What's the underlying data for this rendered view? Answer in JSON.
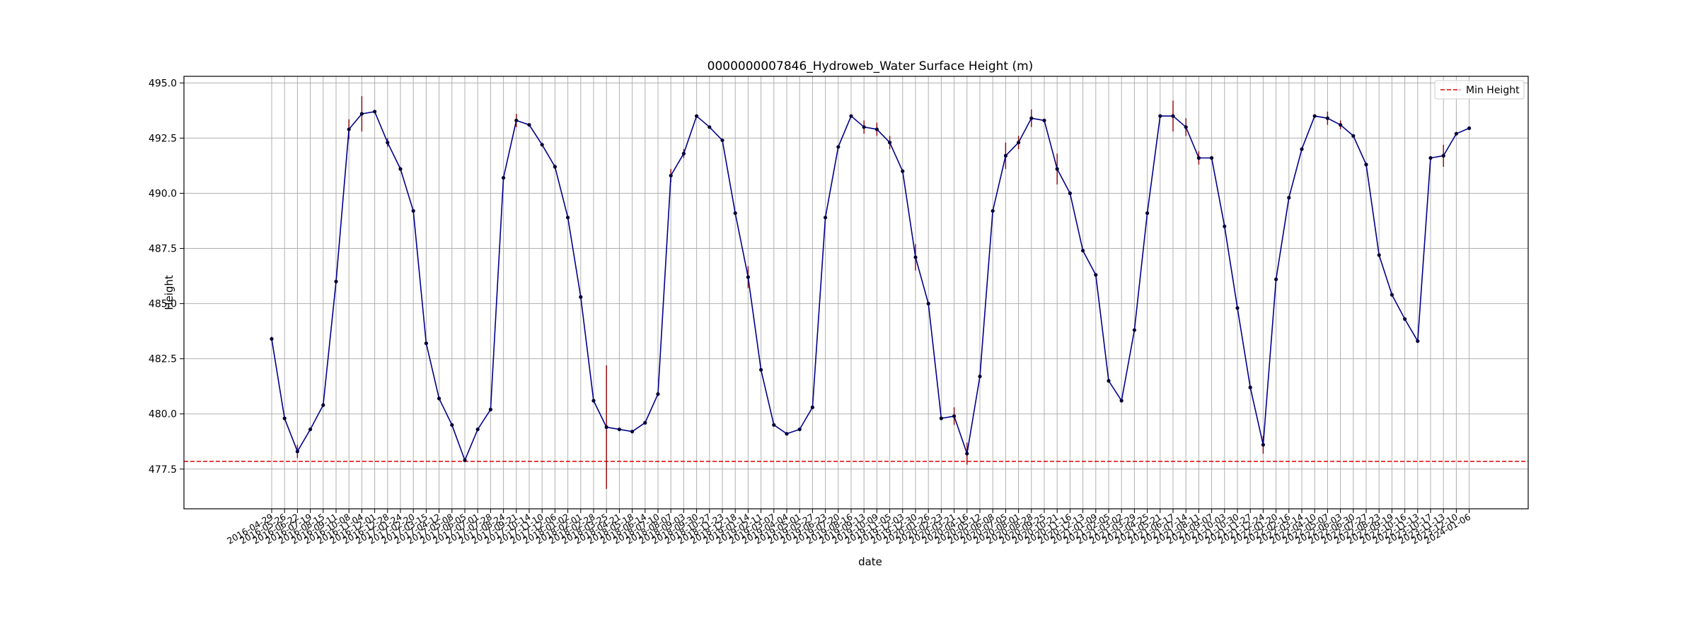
{
  "chart_data": {
    "type": "line",
    "title": "0000000007846_Hydroweb_Water Surface Height (m)",
    "xlabel": "date",
    "ylabel": "Height",
    "ylim": [
      475.7,
      495.3
    ],
    "yticks": [
      "477.5",
      "480.0",
      "482.5",
      "485.0",
      "487.5",
      "490.0",
      "492.5",
      "495.0"
    ],
    "grid": true,
    "legend": {
      "position": "top-right",
      "entries": [
        "Min Height"
      ]
    },
    "colors": {
      "line": "#00008b",
      "point": "#000033",
      "error": "#8b0000",
      "min_line": "#e00000",
      "grid": "#b0b0b0"
    },
    "min_height": 477.85,
    "series": [
      {
        "points": [
          {
            "x": "2016-04-29",
            "y": 483.4,
            "err": 0.1
          },
          {
            "x": "2016-05-26",
            "y": 479.8,
            "err": 0
          },
          {
            "x": "2016-06-22",
            "y": 478.3,
            "err": 0.3
          },
          {
            "x": "2016-07-19",
            "y": 479.3,
            "err": 0
          },
          {
            "x": "2016-08-15",
            "y": 480.4,
            "err": 0
          },
          {
            "x": "2016-09-11",
            "y": 486.0,
            "err": 0
          },
          {
            "x": "2016-10-08",
            "y": 492.9,
            "err": 0.45
          },
          {
            "x": "2016-11-04",
            "y": 493.6,
            "err": 0.8
          },
          {
            "x": "2016-12-01",
            "y": 493.7,
            "err": 0
          },
          {
            "x": "2016-12-28",
            "y": 492.3,
            "err": 0.2
          },
          {
            "x": "2017-01-24",
            "y": 491.1,
            "err": 0
          },
          {
            "x": "2017-02-20",
            "y": 489.2,
            "err": 0
          },
          {
            "x": "2017-03-15",
            "y": 483.2,
            "err": 0
          },
          {
            "x": "2017-04-12",
            "y": 480.7,
            "err": 0
          },
          {
            "x": "2017-05-08",
            "y": 479.5,
            "err": 0
          },
          {
            "x": "2017-06-05",
            "y": 477.9,
            "err": 0
          },
          {
            "x": "2017-07-01",
            "y": 479.3,
            "err": 0
          },
          {
            "x": "2017-07-28",
            "y": 480.2,
            "err": 0
          },
          {
            "x": "2017-08-24",
            "y": 490.7,
            "err": 0
          },
          {
            "x": "2017-09-21",
            "y": 493.3,
            "err": 0.3
          },
          {
            "x": "2017-10-14",
            "y": 493.1,
            "err": 0
          },
          {
            "x": "2017-11-10",
            "y": 492.2,
            "err": 0
          },
          {
            "x": "2017-12-06",
            "y": 491.2,
            "err": 0.1
          },
          {
            "x": "2018-01-02",
            "y": 488.9,
            "err": 0
          },
          {
            "x": "2018-02-01",
            "y": 485.3,
            "err": 0
          },
          {
            "x": "2018-02-28",
            "y": 480.6,
            "err": 0
          },
          {
            "x": "2018-03-25",
            "y": 479.4,
            "err": 2.8
          },
          {
            "x": "2018-04-21",
            "y": 479.3,
            "err": 0
          },
          {
            "x": "2018-05-18",
            "y": 479.2,
            "err": 0
          },
          {
            "x": "2018-06-14",
            "y": 479.6,
            "err": 0
          },
          {
            "x": "2018-07-10",
            "y": 480.9,
            "err": 0
          },
          {
            "x": "2018-08-07",
            "y": 490.8,
            "err": 0.3
          },
          {
            "x": "2018-09-03",
            "y": 491.8,
            "err": 0.2
          },
          {
            "x": "2018-09-30",
            "y": 493.5,
            "err": 0
          },
          {
            "x": "2018-10-27",
            "y": 493.0,
            "err": 0
          },
          {
            "x": "2018-11-23",
            "y": 492.4,
            "err": 0
          },
          {
            "x": "2018-12-18",
            "y": 489.1,
            "err": 0
          },
          {
            "x": "2019-01-14",
            "y": 486.2,
            "err": 0.5
          },
          {
            "x": "2019-02-11",
            "y": 482.0,
            "err": 0
          },
          {
            "x": "2019-03-07",
            "y": 479.5,
            "err": 0
          },
          {
            "x": "2019-04-04",
            "y": 479.1,
            "err": 0
          },
          {
            "x": "2019-05-01",
            "y": 479.3,
            "err": 0
          },
          {
            "x": "2019-05-27",
            "y": 480.3,
            "err": 0
          },
          {
            "x": "2019-06-23",
            "y": 488.9,
            "err": 0
          },
          {
            "x": "2019-07-20",
            "y": 492.1,
            "err": 0
          },
          {
            "x": "2019-08-16",
            "y": 493.5,
            "err": 0
          },
          {
            "x": "2019-09-13",
            "y": 493.0,
            "err": 0.3
          },
          {
            "x": "2019-10-09",
            "y": 492.9,
            "err": 0.3
          },
          {
            "x": "2019-11-05",
            "y": 492.3,
            "err": 0.3
          },
          {
            "x": "2019-12-03",
            "y": 491.0,
            "err": 0
          },
          {
            "x": "2019-12-30",
            "y": 487.1,
            "err": 0.6
          },
          {
            "x": "2020-01-26",
            "y": 485.0,
            "err": 0
          },
          {
            "x": "2020-02-23",
            "y": 479.8,
            "err": 0
          },
          {
            "x": "2020-03-21",
            "y": 479.9,
            "err": 0.4
          },
          {
            "x": "2020-04-16",
            "y": 478.2,
            "err": 0.5
          },
          {
            "x": "2020-05-12",
            "y": 481.7,
            "err": 0
          },
          {
            "x": "2020-06-08",
            "y": 489.2,
            "err": 0
          },
          {
            "x": "2020-07-05",
            "y": 491.7,
            "err": 0.6
          },
          {
            "x": "2020-08-01",
            "y": 492.3,
            "err": 0.3
          },
          {
            "x": "2020-08-28",
            "y": 493.4,
            "err": 0.4
          },
          {
            "x": "2020-09-25",
            "y": 493.3,
            "err": 0
          },
          {
            "x": "2020-10-21",
            "y": 491.1,
            "err": 0.7
          },
          {
            "x": "2020-11-16",
            "y": 490.0,
            "err": 0
          },
          {
            "x": "2020-12-13",
            "y": 487.4,
            "err": 0
          },
          {
            "x": "2021-01-09",
            "y": 486.3,
            "err": 0
          },
          {
            "x": "2021-02-05",
            "y": 481.5,
            "err": 0
          },
          {
            "x": "2021-03-02",
            "y": 480.6,
            "err": 0
          },
          {
            "x": "2021-03-29",
            "y": 483.8,
            "err": 0
          },
          {
            "x": "2021-04-25",
            "y": 489.1,
            "err": 0
          },
          {
            "x": "2021-05-21",
            "y": 493.5,
            "err": 0
          },
          {
            "x": "2021-06-17",
            "y": 493.5,
            "err": 0.7
          },
          {
            "x": "2021-07-14",
            "y": 493.0,
            "err": 0.4
          },
          {
            "x": "2021-08-11",
            "y": 491.6,
            "err": 0.3
          },
          {
            "x": "2021-09-07",
            "y": 491.6,
            "err": 0
          },
          {
            "x": "2021-10-03",
            "y": 488.5,
            "err": 0
          },
          {
            "x": "2021-10-30",
            "y": 484.8,
            "err": 0
          },
          {
            "x": "2021-11-27",
            "y": 481.2,
            "err": 0
          },
          {
            "x": "2021-12-24",
            "y": 478.6,
            "err": 0.4
          },
          {
            "x": "2022-01-20",
            "y": 486.1,
            "err": 0
          },
          {
            "x": "2022-02-16",
            "y": 489.8,
            "err": 0
          },
          {
            "x": "2022-03-14",
            "y": 492.0,
            "err": 0
          },
          {
            "x": "2022-04-10",
            "y": 493.5,
            "err": 0
          },
          {
            "x": "2022-05-07",
            "y": 493.4,
            "err": 0.3
          },
          {
            "x": "2022-06-03",
            "y": 493.1,
            "err": 0.2
          },
          {
            "x": "2022-06-30",
            "y": 492.6,
            "err": 0
          },
          {
            "x": "2022-07-27",
            "y": 491.3,
            "err": 0
          },
          {
            "x": "2022-08-23",
            "y": 487.2,
            "err": 0
          },
          {
            "x": "2022-09-19",
            "y": 485.4,
            "err": 0
          },
          {
            "x": "2022-10-16",
            "y": 484.3,
            "err": 0
          },
          {
            "x": "2022-11-13",
            "y": 483.3,
            "err": 0
          },
          {
            "x": "2023-10-17",
            "y": 491.6,
            "err": 0
          },
          {
            "x": "2023-11-13",
            "y": 491.7,
            "err": 0.5
          },
          {
            "x": "2023-12-10",
            "y": 492.7,
            "err": 0
          },
          {
            "x": "2024-01-06",
            "y": 492.95,
            "err": 0
          }
        ]
      }
    ]
  }
}
